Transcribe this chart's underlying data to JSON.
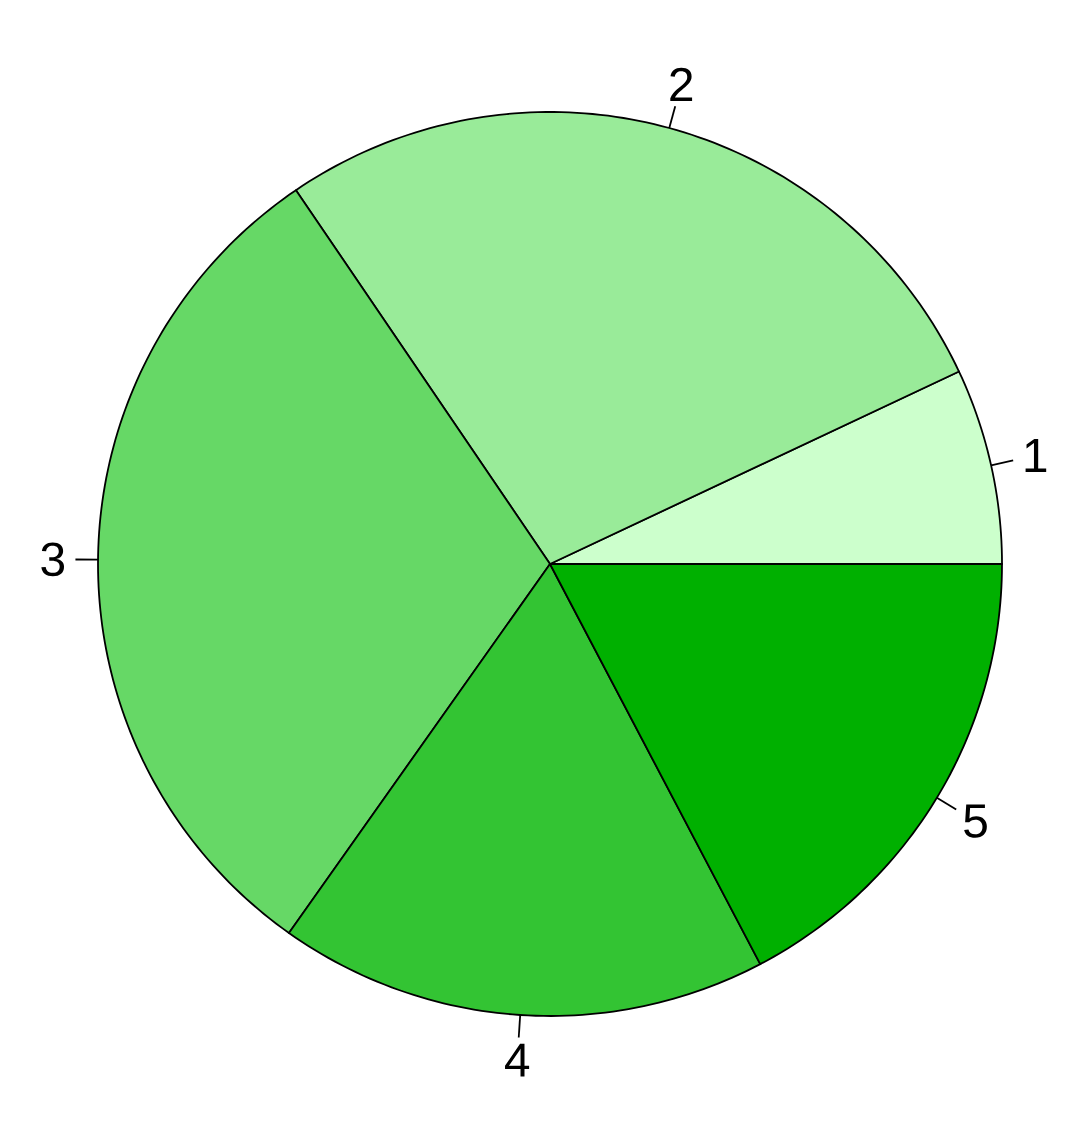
{
  "chart_data": {
    "type": "pie",
    "categories": [
      "1",
      "2",
      "3",
      "4",
      "5"
    ],
    "values": [
      7,
      27.5,
      30.7,
      17.5,
      17.3
    ],
    "colors": [
      "#ccffcc",
      "#99eb99",
      "#66d866",
      "#33c433",
      "#00b000"
    ]
  }
}
